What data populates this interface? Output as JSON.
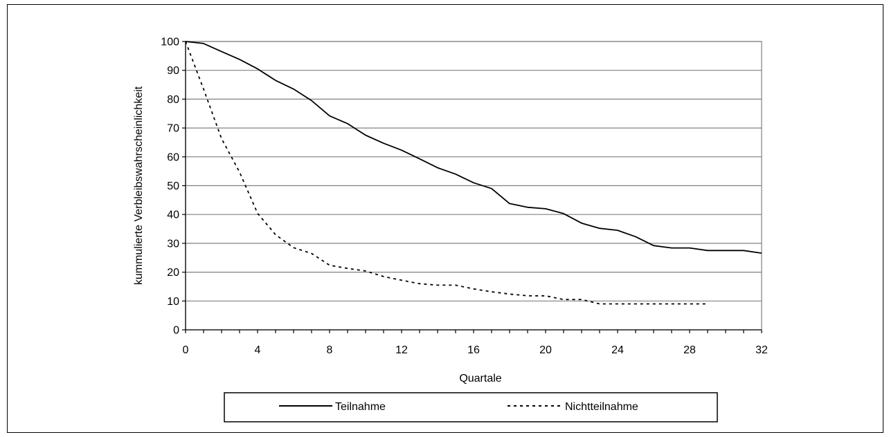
{
  "chart_data": {
    "type": "line",
    "title": "",
    "xlabel": "Quartale",
    "ylabel": "kummulierte Verbleibswahrscheinlichkeit",
    "xlim": [
      0,
      32
    ],
    "ylim": [
      0,
      100
    ],
    "x_ticks": [
      0,
      4,
      8,
      12,
      16,
      20,
      24,
      28,
      32
    ],
    "y_ticks": [
      0,
      10,
      20,
      30,
      40,
      50,
      60,
      70,
      80,
      90,
      100
    ],
    "grid": "horizontal",
    "legend_position": "bottom",
    "series": [
      {
        "name": "Teilnahme",
        "style": "solid",
        "color": "#000000",
        "x": [
          0,
          1,
          2,
          3,
          4,
          5,
          6,
          7,
          8,
          9,
          10,
          11,
          12,
          13,
          14,
          15,
          16,
          17,
          18,
          19,
          20,
          21,
          22,
          23,
          24,
          25,
          26,
          27,
          28,
          29,
          30,
          31,
          32
        ],
        "values": [
          100,
          99.3,
          96.5,
          93.8,
          90.5,
          86.5,
          83.5,
          79.5,
          74.2,
          71.5,
          67.5,
          64.7,
          62.3,
          59.3,
          56.2,
          54,
          51,
          49,
          43.8,
          42.5,
          42,
          40.3,
          37,
          35.2,
          34.5,
          32.3,
          29.2,
          28.4,
          28.4,
          27.5,
          27.5,
          27.5,
          26.6
        ]
      },
      {
        "name": "Nichtteilnahme",
        "style": "dotted",
        "color": "#000000",
        "x": [
          0,
          1,
          2,
          3,
          4,
          5,
          6,
          7,
          8,
          9,
          10,
          11,
          12,
          13,
          14,
          15,
          16,
          17,
          18,
          19,
          20,
          21,
          22,
          23,
          24,
          25,
          26,
          27,
          28,
          29
        ],
        "values": [
          100,
          83.5,
          66.3,
          54.7,
          40.4,
          33,
          28.5,
          26.5,
          22.4,
          21.3,
          20.4,
          18.5,
          17.2,
          16,
          15.5,
          15.5,
          14.2,
          13.2,
          12.4,
          11.8,
          11.8,
          10.5,
          10.5,
          9,
          9,
          9,
          9,
          9,
          9,
          9
        ]
      }
    ]
  }
}
